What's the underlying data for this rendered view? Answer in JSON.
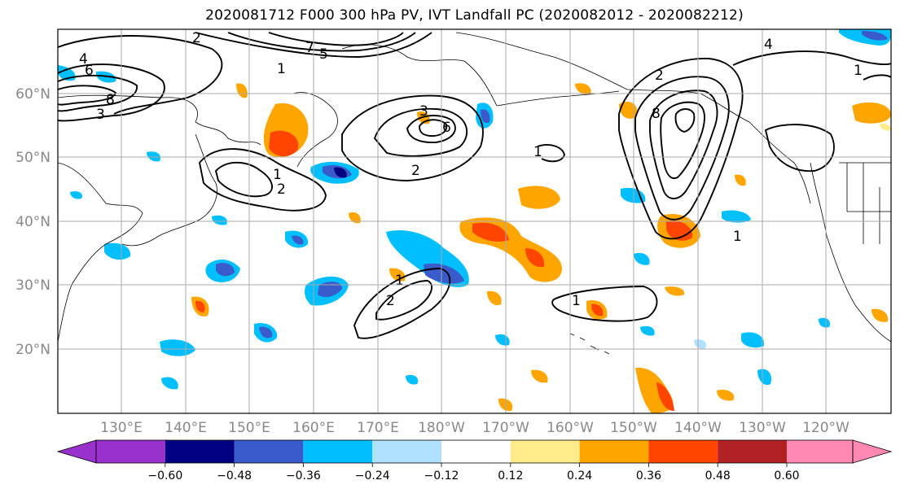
{
  "title": "2020081712 F000 300 hPa PV, IVT Landfall PC (2020082012 - 2020082212)",
  "map": {
    "lat_labels": [
      "60°N",
      "50°N",
      "40°N",
      "30°N",
      "20°N"
    ],
    "lon_labels": [
      "130°E",
      "140°E",
      "150°E",
      "160°E",
      "170°E",
      "180°W",
      "170°W",
      "160°W",
      "150°W",
      "140°W",
      "130°W",
      "120°W"
    ],
    "contour_labels": [
      "2",
      "4",
      "6",
      "8",
      "1",
      "7",
      "3",
      "5",
      "1",
      "2",
      "3",
      "6",
      "1",
      "2",
      "1",
      "8",
      "1",
      "2",
      "1",
      "1",
      "4",
      "2"
    ]
  },
  "colorbar": {
    "ticks": [
      "−0.60",
      "−0.48",
      "−0.36",
      "−0.24",
      "−0.12",
      "0.12",
      "0.24",
      "0.36",
      "0.48",
      "0.60"
    ],
    "colors": [
      "#9932cc",
      "#000080",
      "#3a5bcc",
      "#00bfff",
      "#b0e2ff",
      "#ffffff",
      "#ffeb8a",
      "#ffa500",
      "#ff4500",
      "#b22222",
      "#ff89b4"
    ]
  },
  "colors": {
    "pos_light": "#ffeb8a",
    "pos_mid": "#ffa500",
    "pos_strong": "#ff4500",
    "neg_light": "#b0e2ff",
    "neg_mid": "#00bfff",
    "neg_strong": "#3a5bcc",
    "neg_max": "#000080",
    "grid": "#aaaaaa",
    "tick_label": "#888888"
  }
}
